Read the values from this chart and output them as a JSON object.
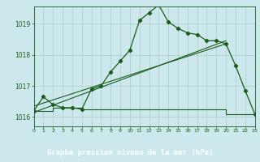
{
  "title": "Graphe pression niveau de la mer (hPa)",
  "bg_color": "#cce8ec",
  "plot_bg_color": "#cce8ec",
  "grid_color": "#aacccc",
  "line_color": "#1a5c1a",
  "label_bg_color": "#3a7a3a",
  "label_text_color": "#ffffff",
  "x_min": 0,
  "x_max": 23,
  "y_min": 1015.7,
  "y_max": 1019.55,
  "yticks": [
    1016,
    1017,
    1018,
    1019
  ],
  "xticks": [
    0,
    1,
    2,
    3,
    4,
    5,
    6,
    7,
    8,
    9,
    10,
    11,
    12,
    13,
    14,
    15,
    16,
    17,
    18,
    19,
    20,
    21,
    22,
    23
  ],
  "series1_x": [
    0,
    1,
    2,
    3,
    4,
    5,
    6,
    7,
    8,
    9,
    10,
    11,
    12,
    13,
    14,
    15,
    16,
    17,
    18,
    19,
    20,
    21,
    22,
    23
  ],
  "series1_y": [
    1016.2,
    1016.65,
    1016.4,
    1016.3,
    1016.3,
    1016.25,
    1016.9,
    1017.0,
    1017.45,
    1017.8,
    1018.15,
    1019.1,
    1019.35,
    1019.6,
    1019.05,
    1018.85,
    1018.7,
    1018.65,
    1018.45,
    1018.45,
    1018.35,
    1017.65,
    1016.85,
    1016.1
  ],
  "series2_x": [
    0,
    20
  ],
  "series2_y": [
    1016.15,
    1018.45
  ],
  "series3_x": [
    0,
    20
  ],
  "series3_y": [
    1016.35,
    1018.35
  ],
  "series4_x": [
    0,
    1,
    2,
    3,
    4,
    5,
    6,
    7,
    8,
    9,
    10,
    11,
    12,
    13,
    14,
    15,
    16,
    17,
    18,
    19,
    20,
    21,
    22,
    23
  ],
  "series4_y": [
    1016.2,
    1016.2,
    1016.3,
    1016.3,
    1016.3,
    1016.25,
    1016.25,
    1016.25,
    1016.25,
    1016.25,
    1016.25,
    1016.25,
    1016.25,
    1016.25,
    1016.25,
    1016.25,
    1016.25,
    1016.25,
    1016.25,
    1016.25,
    1016.1,
    1016.1,
    1016.1,
    1016.1
  ]
}
